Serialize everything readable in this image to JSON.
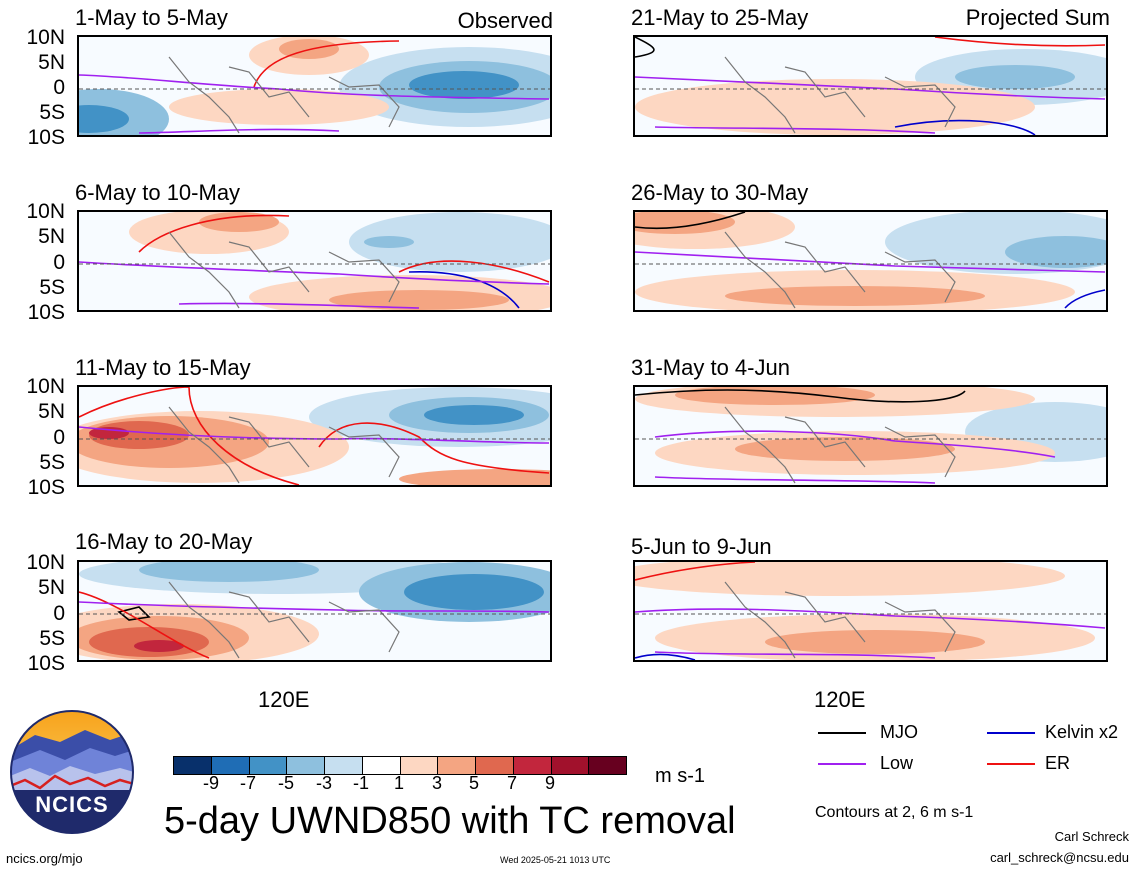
{
  "panels": [
    {
      "title": "1-May to 5-May",
      "tag": "Observed"
    },
    {
      "title": "6-May to 10-May",
      "tag": ""
    },
    {
      "title": "11-May to 15-May",
      "tag": ""
    },
    {
      "title": "16-May to 20-May",
      "tag": ""
    },
    {
      "title": "21-May to 25-May",
      "tag": "Projected Sum"
    },
    {
      "title": "26-May to 30-May",
      "tag": ""
    },
    {
      "title": "31-May to 4-Jun",
      "tag": ""
    },
    {
      "title": "5-Jun to 9-Jun",
      "tag": ""
    }
  ],
  "lat_labels": [
    "10N",
    "5N",
    "0",
    "5S",
    "10S"
  ],
  "lon_label": "120E",
  "colorbar": {
    "colors": [
      "#08306b",
      "#1f6db5",
      "#4292c6",
      "#8ec0de",
      "#c6dff0",
      "#ffffff",
      "#fdd7c2",
      "#f4a582",
      "#e0684f",
      "#c2263d",
      "#a1112c",
      "#67001f"
    ],
    "labels": [
      "-9",
      "-7",
      "-5",
      "-3",
      "-1",
      "1",
      "3",
      "5",
      "7",
      "9"
    ],
    "units": "m s-1"
  },
  "title": "5-day UWND850 with TC removal",
  "legend": [
    {
      "label": "MJO",
      "color": "#000000"
    },
    {
      "label": "Kelvin x2",
      "color": "#0000cc"
    },
    {
      "label": "Low",
      "color": "#a020f0"
    },
    {
      "label": "ER",
      "color": "#ee1111"
    }
  ],
  "contour_note": "Contours at 2, 6 m s-1",
  "logo_text": "NCICS",
  "author": "Carl Schreck",
  "email": "carl_schreck@ncsu.edu",
  "url": "ncics.org/mjo",
  "timestamp": "Wed 2025-05-21 1013 UTC"
}
